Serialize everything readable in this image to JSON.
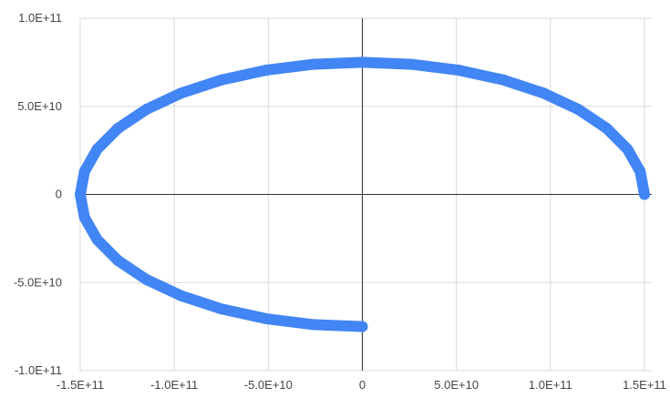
{
  "chart_data": {
    "type": "scatter",
    "title": "",
    "xlabel": "",
    "ylabel": "",
    "xlim": [
      -150000000000,
      150000000000
    ],
    "ylim": [
      -100000000000,
      100000000000
    ],
    "grid": true,
    "series": [
      {
        "color": "#4285f4",
        "x": [
          150000000000,
          147721000000,
          141000000000,
          129904000000,
          114907000000,
          96418000000,
          75000000000,
          51303000000,
          26047000000,
          0,
          -26047000000,
          -51303000000,
          -75000000000,
          -96418000000,
          -114907000000,
          -129904000000,
          -141000000000,
          -147721000000,
          -150000000000,
          -147721000000,
          -141000000000,
          -129904000000,
          -114907000000,
          -96418000000,
          -75000000000,
          -51303000000,
          -26047000000,
          0
        ],
        "y": [
          0,
          13024000000,
          25652000000,
          37500000000,
          48209000000,
          57453000000,
          64952000000,
          70477000000,
          73861000000,
          75000000000,
          73861000000,
          70477000000,
          64952000000,
          57453000000,
          48209000000,
          37500000000,
          25652000000,
          13024000000,
          0,
          -13024000000,
          -25652000000,
          -37500000000,
          -48209000000,
          -57453000000,
          -64952000000,
          -70477000000,
          -73861000000,
          -75000000000
        ]
      }
    ],
    "x_ticks": [
      {
        "value": -150000000000,
        "label": "-1.5E+11"
      },
      {
        "value": -100000000000,
        "label": "-1.0E+11"
      },
      {
        "value": -50000000000,
        "label": "-5.0E+10"
      },
      {
        "value": 0,
        "label": "0"
      },
      {
        "value": 50000000000,
        "label": "5.0E+10"
      },
      {
        "value": 100000000000,
        "label": "1.0E+11"
      },
      {
        "value": 150000000000,
        "label": "1.5E+11"
      }
    ],
    "y_ticks": [
      {
        "value": 100000000000,
        "label": "1.0E+11"
      },
      {
        "value": 50000000000,
        "label": "5.0E+10"
      },
      {
        "value": 0,
        "label": "0"
      },
      {
        "value": -50000000000,
        "label": "-5.0E+10"
      },
      {
        "value": -100000000000,
        "label": "-1.0E+11"
      }
    ]
  }
}
